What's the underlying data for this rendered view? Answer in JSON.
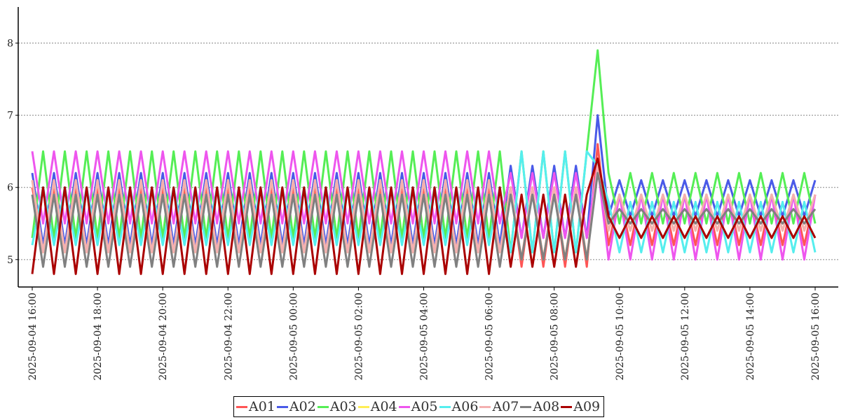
{
  "chart_data": {
    "type": "line",
    "title": "",
    "xlabel": "",
    "ylabel": "",
    "ylim": [
      4.62,
      8.5
    ],
    "xlim": [
      "2025-09-04 15:50",
      "2025-09-05 16:10"
    ],
    "grid": "horizontal dotted",
    "legend_placement": "bottom",
    "y_ticks": [
      "5",
      "6",
      "7",
      "8"
    ],
    "x_ticks": [
      "2025-09-04 16:00",
      "2025-09-04 18:00",
      "2025-09-04 20:00",
      "2025-09-04 22:00",
      "2025-09-05 00:00",
      "2025-09-05 02:00",
      "2025-09-05 04:00",
      "2025-09-05 06:00",
      "2025-09-05 08:00",
      "2025-09-05 10:00",
      "2025-09-05 12:00",
      "2025-09-05 14:00",
      "2025-09-05 16:00"
    ],
    "pattern_note_values": {
      "sample_interval_minutes": 20,
      "spike_time": "2025-09-05 09:20"
    },
    "series": [
      {
        "name": "A01",
        "color": "#ff5555",
        "high": [
          6.0,
          6.0,
          5.9
        ],
        "low": [
          5.2,
          4.9,
          5.2
        ],
        "spike": 6.6
      },
      {
        "name": "A02",
        "color": "#4a5ae8",
        "high": [
          6.2,
          6.3,
          6.1
        ],
        "low": [
          5.2,
          5.3,
          5.6
        ],
        "spike": 7.0
      },
      {
        "name": "A03",
        "color": "#55ee55",
        "high": [
          6.5,
          6.5,
          6.2
        ],
        "low": [
          5.3,
          5.1,
          5.5
        ],
        "spike": 7.9
      },
      {
        "name": "A04",
        "color": "#ffee55",
        "high": [
          6.1,
          6.0,
          5.9
        ],
        "low": [
          5.1,
          5.0,
          5.4
        ],
        "spike": 6.3
      },
      {
        "name": "A05",
        "color": "#ee55ee",
        "high": [
          6.5,
          6.2,
          5.9
        ],
        "low": [
          5.5,
          5.3,
          5.0
        ],
        "spike": 6.3
      },
      {
        "name": "A06",
        "color": "#55eeee",
        "high": [
          6.0,
          6.5,
          5.8
        ],
        "low": [
          5.2,
          5.1,
          5.1
        ],
        "spike": 6.3
      },
      {
        "name": "A07",
        "color": "#f4b0b0",
        "high": [
          6.1,
          6.0,
          5.9
        ],
        "low": [
          5.1,
          5.0,
          5.4
        ],
        "spike": 6.3
      },
      {
        "name": "A08",
        "color": "#808080",
        "high": [
          5.9,
          5.9,
          5.7
        ],
        "low": [
          4.9,
          5.0,
          5.5
        ],
        "spike": 6.2
      },
      {
        "name": "A09",
        "color": "#aa0000",
        "high": [
          6.0,
          5.9,
          5.6
        ],
        "low": [
          4.8,
          4.9,
          5.3
        ],
        "spike": 6.4
      }
    ]
  }
}
